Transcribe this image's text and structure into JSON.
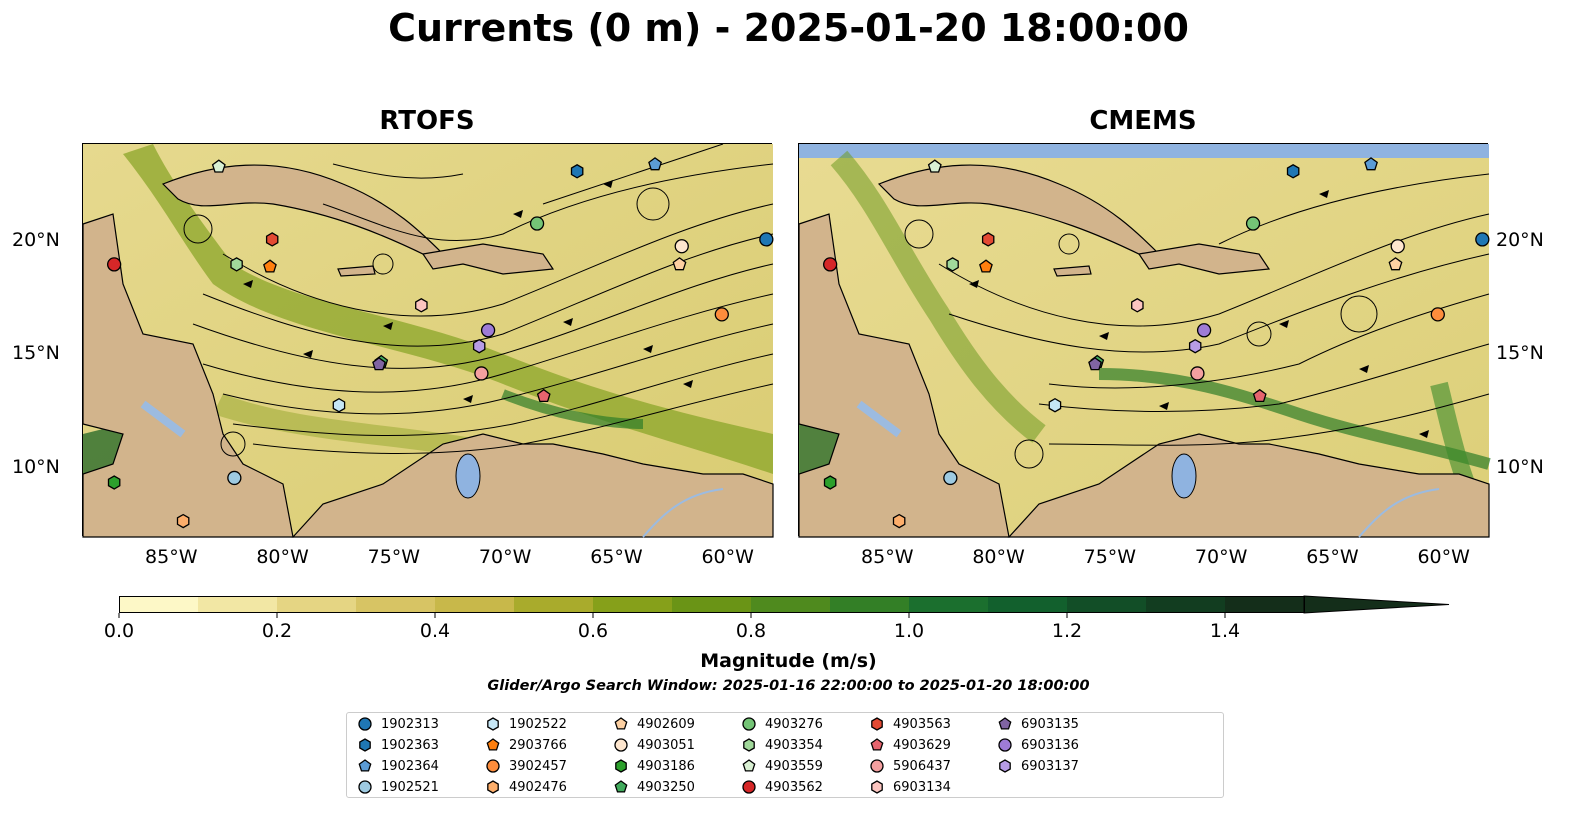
{
  "title": "Currents (0 m) - 2025-01-20 18:00:00",
  "panels": [
    {
      "title": "RTOFS"
    },
    {
      "title": "CMEMS"
    }
  ],
  "axes": {
    "x_ticks": [
      "85°W",
      "80°W",
      "75°W",
      "70°W",
      "65°W",
      "60°W"
    ],
    "y_ticks": [
      "20°N",
      "15°N",
      "10°N"
    ]
  },
  "colorbar": {
    "label": "Magnitude (m/s)",
    "ticks": [
      "0.0",
      "0.2",
      "0.4",
      "0.6",
      "0.8",
      "1.0",
      "1.2",
      "1.4"
    ],
    "range": [
      0,
      1.5
    ],
    "extend": "max",
    "colors": [
      "#fdf8c7",
      "#f2e7a4",
      "#e5d583",
      "#d7c464",
      "#c8b84a",
      "#a9ab2c",
      "#86a01a",
      "#6a9416",
      "#4f8a1e",
      "#337f26",
      "#1b6f2e",
      "#12602d",
      "#124e27",
      "#123d20",
      "#142e1a"
    ]
  },
  "search_window": "Glider/Argo Search Window: 2025-01-16 22:00:00 to 2025-01-20 18:00:00",
  "legend": {
    "items": [
      {
        "id": "1902313",
        "marker": "circle",
        "color": "#1f77b4"
      },
      {
        "id": "1902363",
        "marker": "hexagon",
        "color": "#1f77b4"
      },
      {
        "id": "1902364",
        "marker": "pentagon",
        "color": "#5b9bd5"
      },
      {
        "id": "1902521",
        "marker": "circle",
        "color": "#9ecae1"
      },
      {
        "id": "1902522",
        "marker": "hexagon",
        "color": "#c6e6f5"
      },
      {
        "id": "2903766",
        "marker": "pentagon",
        "color": "#ff7f0e"
      },
      {
        "id": "3902457",
        "marker": "circle",
        "color": "#fd8d3c"
      },
      {
        "id": "4902476",
        "marker": "hexagon",
        "color": "#fdae6b"
      },
      {
        "id": "4902609",
        "marker": "pentagon",
        "color": "#fdd0a2"
      },
      {
        "id": "4903051",
        "marker": "circle",
        "color": "#fee6ce"
      },
      {
        "id": "4903186",
        "marker": "hexagon",
        "color": "#2ca02c"
      },
      {
        "id": "4903250",
        "marker": "pentagon",
        "color": "#41ab5d"
      },
      {
        "id": "4903276",
        "marker": "circle",
        "color": "#74c476"
      },
      {
        "id": "4903354",
        "marker": "hexagon",
        "color": "#a1d99b"
      },
      {
        "id": "4903559",
        "marker": "pentagon",
        "color": "#d9f0d3"
      },
      {
        "id": "4903562",
        "marker": "circle",
        "color": "#d62728"
      },
      {
        "id": "4903563",
        "marker": "hexagon",
        "color": "#e34a33"
      },
      {
        "id": "4903629",
        "marker": "pentagon",
        "color": "#e6646e"
      },
      {
        "id": "5906437",
        "marker": "circle",
        "color": "#f4a0a0"
      },
      {
        "id": "6903134",
        "marker": "hexagon",
        "color": "#fcc5c0"
      },
      {
        "id": "6903135",
        "marker": "pentagon",
        "color": "#8064a2"
      },
      {
        "id": "6903136",
        "marker": "circle",
        "color": "#9e7bd6"
      },
      {
        "id": "6903137",
        "marker": "hexagon",
        "color": "#b79ce6"
      }
    ]
  },
  "colors": {
    "land": "#d2b48c",
    "lake": "#8fb3e0",
    "river": "#9cbbe0",
    "coast": "#000000"
  },
  "map_extent": {
    "lon": [
      -89,
      -58
    ],
    "lat": [
      7,
      24.3
    ]
  },
  "floats": [
    {
      "id": "1902313",
      "lon": -58.3,
      "lat": 20.1
    },
    {
      "id": "1902363",
      "lon": -66.8,
      "lat": 23.1
    },
    {
      "id": "1902364",
      "lon": -63.3,
      "lat": 23.4
    },
    {
      "id": "1902521",
      "lon": -82.2,
      "lat": 9.6
    },
    {
      "id": "1902522",
      "lon": -77.5,
      "lat": 12.8
    },
    {
      "id": "2903766",
      "lon": -80.6,
      "lat": 18.9
    },
    {
      "id": "3902457",
      "lon": -60.3,
      "lat": 16.8
    },
    {
      "id": "4902476",
      "lon": -84.5,
      "lat": 7.7
    },
    {
      "id": "4902609",
      "lon": -62.2,
      "lat": 19.0
    },
    {
      "id": "4903051",
      "lon": -62.1,
      "lat": 19.8
    },
    {
      "id": "4903186",
      "lon": -87.6,
      "lat": 9.4
    },
    {
      "id": "4903250",
      "lon": -75.6,
      "lat": 14.7
    },
    {
      "id": "4903276",
      "lon": -68.6,
      "lat": 20.8
    },
    {
      "id": "4903354",
      "lon": -82.1,
      "lat": 19.0
    },
    {
      "id": "4903559",
      "lon": -82.9,
      "lat": 23.3
    },
    {
      "id": "4903562",
      "lon": -87.6,
      "lat": 19.0
    },
    {
      "id": "4903563",
      "lon": -80.5,
      "lat": 20.1
    },
    {
      "id": "4903629",
      "lon": -68.3,
      "lat": 13.2
    },
    {
      "id": "5906437",
      "lon": -71.1,
      "lat": 14.2
    },
    {
      "id": "6903134",
      "lon": -73.8,
      "lat": 17.2
    },
    {
      "id": "6903135",
      "lon": -75.7,
      "lat": 14.6
    },
    {
      "id": "6903136",
      "lon": -70.8,
      "lat": 16.1
    },
    {
      "id": "6903137",
      "lon": -71.2,
      "lat": 15.4
    }
  ]
}
